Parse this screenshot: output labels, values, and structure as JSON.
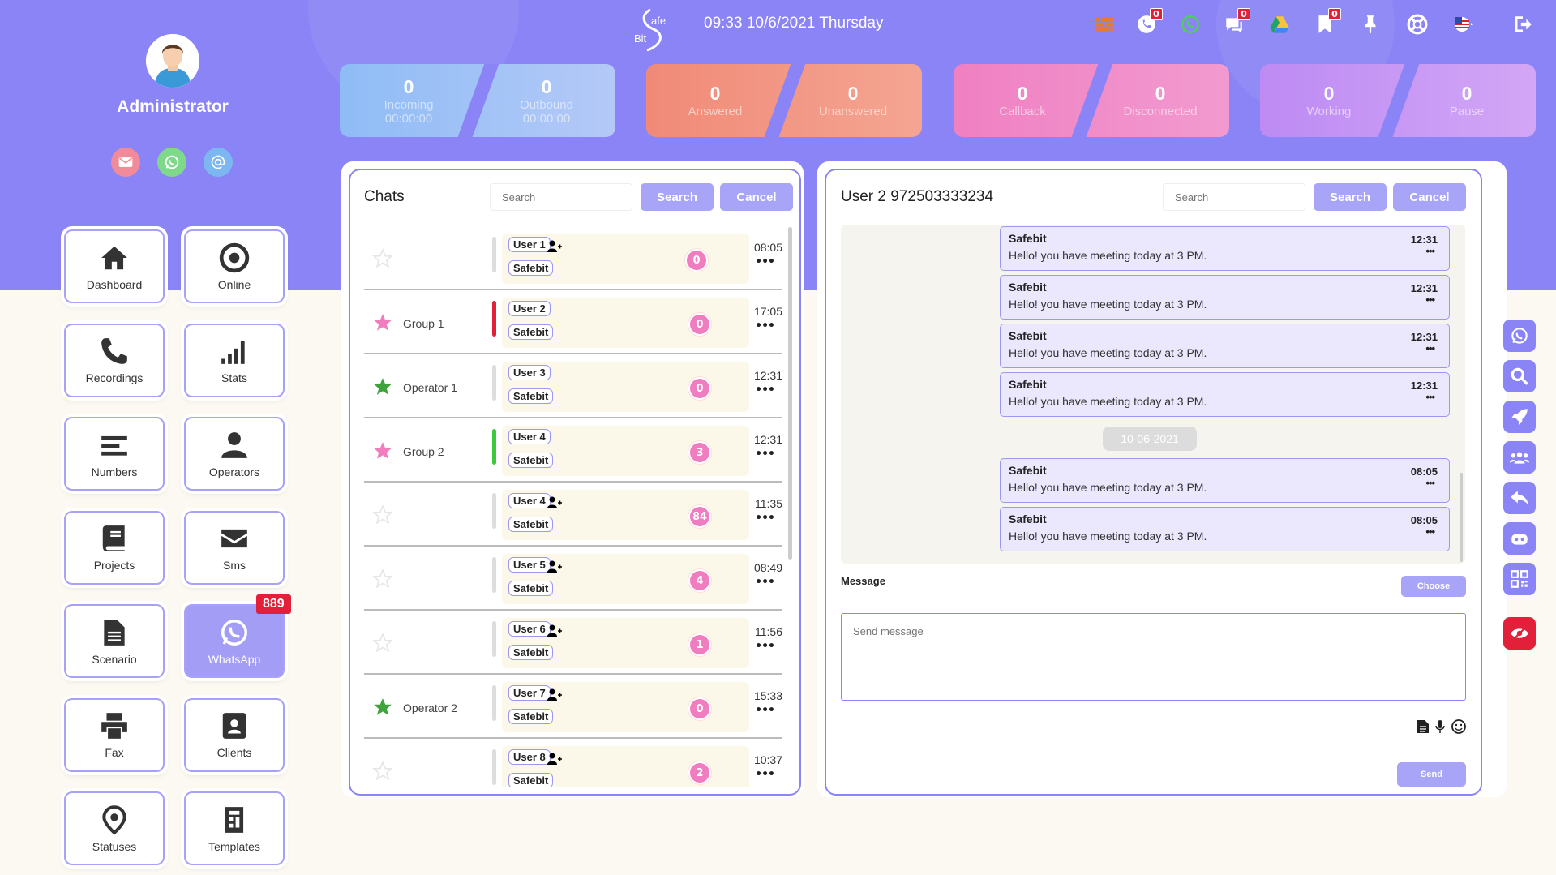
{
  "user": {
    "name": "Administrator"
  },
  "header": {
    "datetime": "09:33 10/6/2021 Thursday",
    "logo_text_top": "afe",
    "logo_text_bottom": "Bit",
    "logo_letter": "S",
    "badges": {
      "calls": "0",
      "chat": "0",
      "bookmark": "0"
    }
  },
  "stats": [
    {
      "left": {
        "value": "0",
        "label": "Incoming",
        "time": "00:00:00"
      },
      "right": {
        "value": "0",
        "label": "Outbound",
        "time": "00:00:00"
      }
    },
    {
      "left": {
        "value": "0",
        "label": "Answered"
      },
      "right": {
        "value": "0",
        "label": "Unanswered"
      }
    },
    {
      "left": {
        "value": "0",
        "label": "Callback"
      },
      "right": {
        "value": "0",
        "label": "Disconnected"
      }
    },
    {
      "left": {
        "value": "0",
        "label": "Working"
      },
      "right": {
        "value": "0",
        "label": "Pause"
      }
    }
  ],
  "nav": [
    {
      "label": "Dashboard",
      "icon": "home-icon"
    },
    {
      "label": "Online",
      "icon": "target-icon"
    },
    {
      "label": "Recordings",
      "icon": "phone-icon"
    },
    {
      "label": "Stats",
      "icon": "signal-icon"
    },
    {
      "label": "Numbers",
      "icon": "lines-icon"
    },
    {
      "label": "Operators",
      "icon": "user-icon"
    },
    {
      "label": "Projects",
      "icon": "book-icon"
    },
    {
      "label": "Sms",
      "icon": "envelope-icon"
    },
    {
      "label": "Scenario",
      "icon": "file-icon"
    },
    {
      "label": "WhatsApp",
      "icon": "whatsapp-icon"
    },
    {
      "label": "Fax",
      "icon": "printer-icon"
    },
    {
      "label": "Clients",
      "icon": "id-card-icon"
    },
    {
      "label": "Statuses",
      "icon": "map-pin-icon"
    },
    {
      "label": "Templates",
      "icon": "template-icon"
    }
  ],
  "whatsapp_badge": "889",
  "chats": {
    "title": "Chats",
    "search_placeholder": "Search",
    "search_label": "Search",
    "cancel_label": "Cancel",
    "rows": [
      {
        "group": "",
        "user": "User 1",
        "source": "Safebit",
        "count": "0",
        "time": "08:05"
      },
      {
        "group": "Group 1",
        "user": "User 2",
        "source": "Safebit",
        "count": "0",
        "time": "17:05"
      },
      {
        "group": "Operator 1",
        "user": "User 3",
        "source": "Safebit",
        "count": "0",
        "time": "12:31"
      },
      {
        "group": "Group 2",
        "user": "User 4",
        "source": "Safebit",
        "count": "3",
        "time": "12:31"
      },
      {
        "group": "",
        "user": "User 4",
        "source": "Safebit",
        "count": "84",
        "time": "11:35"
      },
      {
        "group": "",
        "user": "User 5",
        "source": "Safebit",
        "count": "4",
        "time": "08:49"
      },
      {
        "group": "",
        "user": "User 6",
        "source": "Safebit",
        "count": "1",
        "time": "11:56"
      },
      {
        "group": "Operator 2",
        "user": "User 7",
        "source": "Safebit",
        "count": "0",
        "time": "15:33"
      },
      {
        "group": "",
        "user": "User 8",
        "source": "Safebit",
        "count": "2",
        "time": "10:37"
      }
    ]
  },
  "conversation": {
    "title": "User 2 972503333234",
    "search_placeholder": "Search",
    "search_label": "Search",
    "cancel_label": "Cancel",
    "messages": [
      {
        "from": "Safebit",
        "text": "Hello! you have meeting today at 3 PM.",
        "time": "12:31"
      },
      {
        "from": "Safebit",
        "text": "Hello! you have meeting today at 3 PM.",
        "time": "12:31"
      },
      {
        "from": "Safebit",
        "text": "Hello! you have meeting today at 3 PM.",
        "time": "12:31"
      },
      {
        "from": "Safebit",
        "text": "Hello! you have meeting today at 3 PM.",
        "time": "12:31"
      },
      {
        "from": "Safebit",
        "text": "Hello! you have meeting today at 3 PM.",
        "time": "08:05"
      },
      {
        "from": "Safebit",
        "text": "Hello! you have meeting today at 3 PM.",
        "time": "08:05"
      }
    ],
    "date_separator": "10-06-2021",
    "message_label": "Message",
    "choose_label": "Choose",
    "input_placeholder": "Send message",
    "send_label": "Send",
    "dots": "•••"
  },
  "colors": {
    "accent": "#8b84f6",
    "pink": "#ef7dc0",
    "green": "#3da33a",
    "red": "#e2203a"
  }
}
